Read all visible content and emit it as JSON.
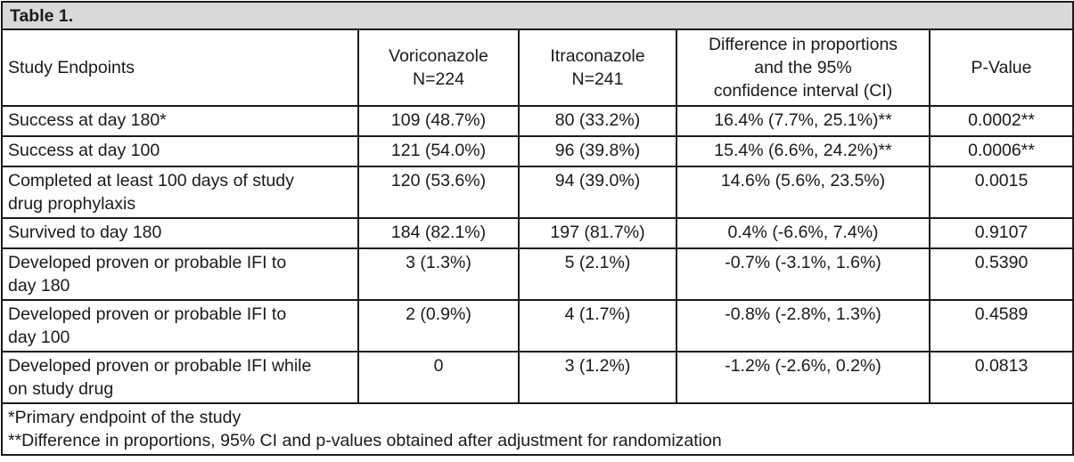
{
  "title": "Table 1.",
  "headers": {
    "endpoint": "Study Endpoints",
    "vori": [
      "Voriconazole",
      "N=224"
    ],
    "itra": [
      "Itraconazole",
      "N=241"
    ],
    "diff": [
      "Difference in proportions",
      "and the 95%",
      "confidence interval (CI)"
    ],
    "p": "P-Value"
  },
  "rows": [
    {
      "endpoint": [
        "Success at day 180*"
      ],
      "vori": "109 (48.7%)",
      "itra": "80 (33.2%)",
      "diff": "16.4% (7.7%, 25.1%)**",
      "p": "0.0002**"
    },
    {
      "endpoint": [
        "Success at day 100"
      ],
      "vori": "121 (54.0%)",
      "itra": "96 (39.8%)",
      "diff": "15.4% (6.6%, 24.2%)**",
      "p": "0.0006**"
    },
    {
      "endpoint": [
        "Completed at least 100 days of study",
        "drug prophylaxis"
      ],
      "vori": "120 (53.6%)",
      "itra": "94 (39.0%)",
      "diff": "14.6% (5.6%, 23.5%)",
      "p": "0.0015"
    },
    {
      "endpoint": [
        "Survived to day 180"
      ],
      "vori": "184 (82.1%)",
      "itra": "197 (81.7%)",
      "diff": "0.4% (-6.6%, 7.4%)",
      "p": "0.9107"
    },
    {
      "endpoint": [
        "Developed proven or probable IFI to",
        "day 180"
      ],
      "vori": "3 (1.3%)",
      "itra": "5 (2.1%)",
      "diff": "-0.7% (-3.1%, 1.6%)",
      "p": "0.5390"
    },
    {
      "endpoint": [
        "Developed proven or probable IFI to",
        "day 100"
      ],
      "vori": "2 (0.9%)",
      "itra": "4 (1.7%)",
      "diff": "-0.8% (-2.8%, 1.3%)",
      "p": "0.4589"
    },
    {
      "endpoint": [
        "Developed proven or probable IFI while",
        "on study drug"
      ],
      "vori": "0",
      "itra": "3 (1.2%)",
      "diff": "-1.2% (-2.6%, 0.2%)",
      "p": "0.0813"
    }
  ],
  "footnotes": [
    "*Primary endpoint of the study",
    "**Difference in proportions, 95% CI and p-values obtained after adjustment for randomization"
  ]
}
